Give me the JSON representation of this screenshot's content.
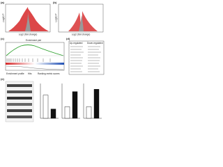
{
  "panels": {
    "a": {
      "label": "(a)",
      "x_label": "Log2 (fold change)",
      "y_label": "-Log10 P"
    },
    "b": {
      "label": "(b)",
      "x_label": "Log2 (fold change)",
      "y_label": "-Log10 P"
    },
    "c": {
      "label": "(c)",
      "title": "Enrichment plot",
      "legend": [
        "Enrichment profile",
        "Hits",
        "Ranking metric scores"
      ]
    },
    "d": {
      "label": "(d)",
      "headers": [
        "Up-regulated",
        "Down-regulated"
      ]
    },
    "e": {
      "label": "(e)",
      "bar_charts": [
        {
          "values": [
            1,
            0.4
          ],
          "ylim": [
            0,
            1.5
          ]
        },
        {
          "values": [
            1,
            2.3
          ],
          "ylim": [
            0,
            3
          ]
        },
        {
          "values": [
            1,
            2.5
          ],
          "ylim": [
            0,
            3
          ]
        }
      ],
      "colors": [
        "#ffffff",
        "#111111"
      ]
    }
  }
}
